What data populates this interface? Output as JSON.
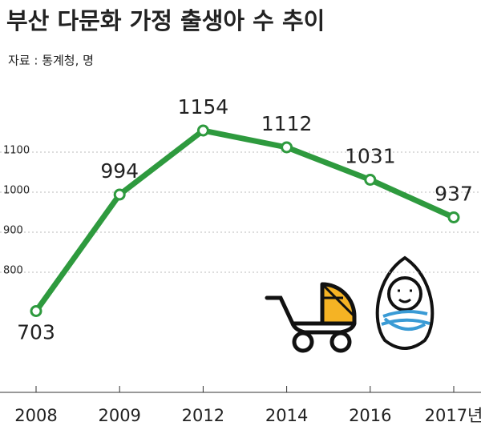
{
  "chart_data": {
    "type": "line",
    "title": "부산 다문화 가정 출생아 수 추이",
    "subtitle": "자료 : 통계청, 명",
    "categories": [
      "2008",
      "2009",
      "2012",
      "2014",
      "2016",
      "2017년"
    ],
    "values": [
      703,
      994,
      1154,
      1112,
      1031,
      937
    ],
    "color": "#2e9a3e",
    "ylim": [
      500,
      1250
    ],
    "yticks": [
      800,
      900,
      1000,
      1100
    ],
    "grid": true
  }
}
